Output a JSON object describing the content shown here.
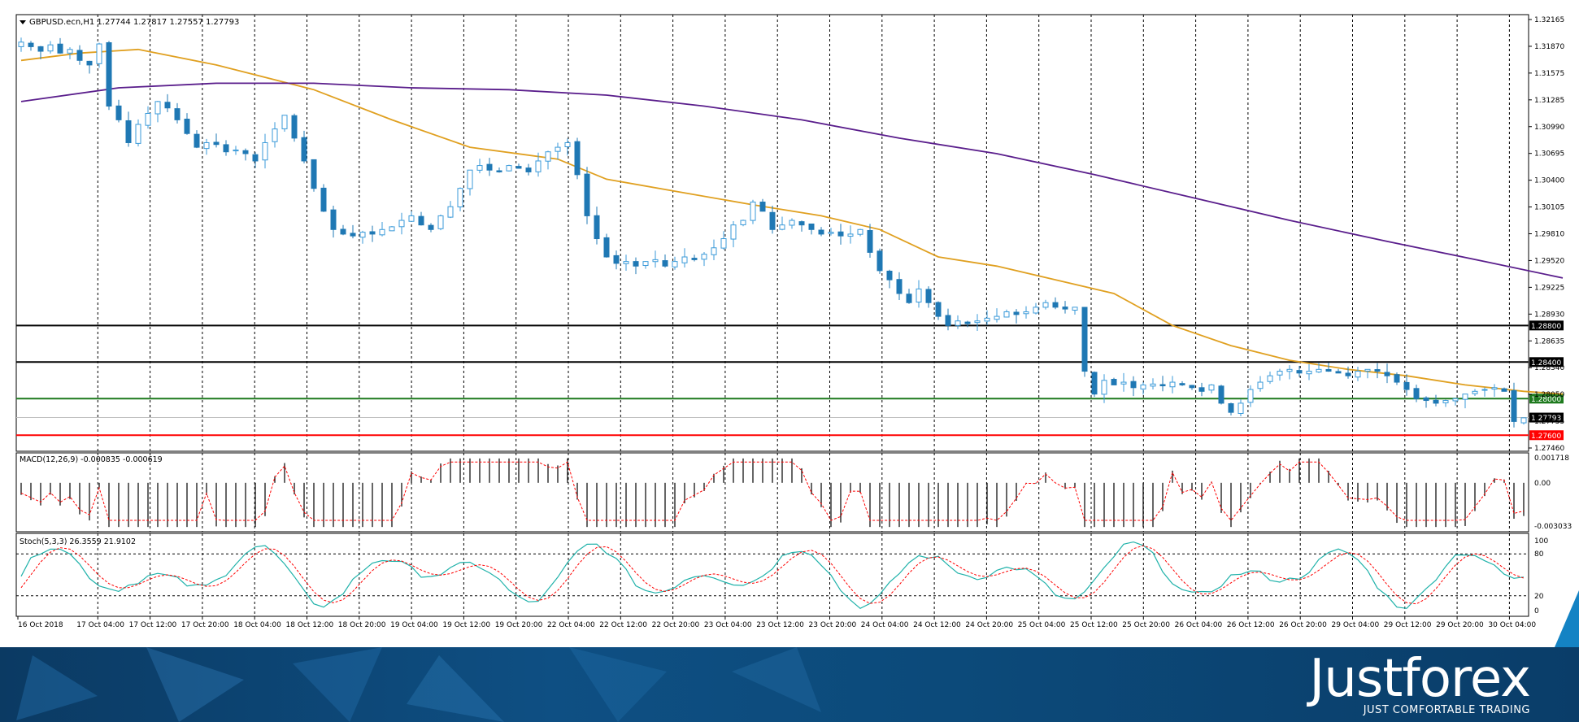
{
  "window": {
    "symbol_info": "GBPUSD.ecn,H1  1.27744 1.27817 1.27557 1.27793"
  },
  "price_scale": [
    "1.32165",
    "1.31870",
    "1.31575",
    "1.31285",
    "1.30990",
    "1.30695",
    "1.30400",
    "1.30105",
    "1.29810",
    "1.29520",
    "1.29225",
    "1.28930",
    "1.28635",
    "1.28340",
    "1.28050",
    "1.27755",
    "1.27460"
  ],
  "levels": [
    {
      "price": 1.288,
      "label": "1.28800",
      "color": "#000000"
    },
    {
      "price": 1.284,
      "label": "1.28400",
      "color": "#000000"
    },
    {
      "price": 1.28,
      "label": "1.28000",
      "color": "#1e7a1e"
    },
    {
      "price": 1.276,
      "label": "1.27600",
      "color": "#ff0000"
    }
  ],
  "current_price": {
    "price": 1.27793,
    "label": "1.27793"
  },
  "macd": {
    "label": "MACD(12,26,9) -0.000835 -0.000619",
    "scale": [
      "0.001718",
      "0.00",
      "-0.003033"
    ]
  },
  "stoch": {
    "label": "Stoch(5,3,3) 26.3559 21.9102",
    "scale": [
      "100",
      "80",
      "20",
      "0"
    ]
  },
  "time_axis": [
    "16 Oct 2018",
    "17 Oct 04:00",
    "17 Oct 12:00",
    "17 Oct 20:00",
    "18 Oct 04:00",
    "18 Oct 12:00",
    "18 Oct 20:00",
    "19 Oct 04:00",
    "19 Oct 12:00",
    "19 Oct 20:00",
    "22 Oct 04:00",
    "22 Oct 12:00",
    "22 Oct 20:00",
    "23 Oct 04:00",
    "23 Oct 12:00",
    "23 Oct 20:00",
    "24 Oct 04:00",
    "24 Oct 12:00",
    "24 Oct 20:00",
    "25 Oct 04:00",
    "25 Oct 12:00",
    "25 Oct 20:00",
    "26 Oct 04:00",
    "26 Oct 12:00",
    "26 Oct 20:00",
    "29 Oct 04:00",
    "29 Oct 12:00",
    "29 Oct 20:00",
    "30 Oct 04:00"
  ],
  "branding": {
    "logo": "Justforex",
    "tagline": "JUST COMFORTABLE TRADING"
  },
  "colors": {
    "bull": "#3a9ad9",
    "bear": "#1f78b4",
    "ma_fast": "#e0a020",
    "ma_slow": "#5a1e8c",
    "macd_hist": "#000000",
    "signal": "#ff0000",
    "stoch_main": "#20b2aa",
    "grid": "#000000",
    "banner": "#0e4f83"
  },
  "chart_data": {
    "type": "candlestick",
    "title": "GBPUSD.ecn,H1",
    "ylim": [
      1.2746,
      1.32165
    ],
    "close_path": [
      1.319,
      1.3185,
      1.318,
      1.3187,
      1.3178,
      1.3182,
      1.317,
      1.3165,
      1.3188,
      1.312,
      1.3105,
      1.308,
      1.31,
      1.3112,
      1.3125,
      1.3118,
      1.3105,
      1.309,
      1.3075,
      1.308,
      1.3078,
      1.307,
      1.3072,
      1.3068,
      1.306,
      1.308,
      1.3095,
      1.311,
      1.3085,
      1.306,
      1.303,
      1.3005,
      1.2985,
      1.298,
      1.2978,
      1.2982,
      1.298,
      1.2985,
      1.2988,
      1.2995,
      1.3,
      1.299,
      1.2985,
      1.3,
      1.301,
      1.303,
      1.305,
      1.3055,
      1.305,
      1.3048,
      1.3055,
      1.3052,
      1.3048,
      1.306,
      1.307,
      1.3075,
      1.308,
      1.3045,
      1.3,
      1.2975,
      1.2955,
      1.2948,
      1.295,
      1.2945,
      1.295,
      1.2952,
      1.2945,
      1.295,
      1.2955,
      1.2952,
      1.2958,
      1.2965,
      1.2975,
      1.299,
      1.2995,
      1.3015,
      1.3005,
      1.2985,
      1.299,
      1.2995,
      1.299,
      1.2985,
      1.298,
      1.2982,
      1.2978,
      1.298,
      1.2985,
      1.296,
      1.294,
      1.293,
      1.2915,
      1.2905,
      1.292,
      1.2905,
      1.289,
      1.288,
      1.2885,
      1.2882,
      1.2885,
      1.2888,
      1.289,
      1.2895,
      1.2892,
      1.2895,
      1.29,
      1.2905,
      1.29,
      1.2898,
      1.29,
      1.283,
      1.2805,
      1.282,
      1.2815,
      1.2818,
      1.2812,
      1.2815,
      1.2816,
      1.2814,
      1.2818,
      1.2815,
      1.2812,
      1.2808,
      1.2815,
      1.2795,
      1.2785,
      1.2795,
      1.281,
      1.2818,
      1.2825,
      1.283,
      1.2832,
      1.2828,
      1.283,
      1.2832,
      1.283,
      1.2828,
      1.2825,
      1.283,
      1.2832,
      1.283,
      1.2825,
      1.2818,
      1.281,
      1.28,
      1.2798,
      1.2795,
      1.2798,
      1.28,
      1.2805,
      1.2808,
      1.281,
      1.2812,
      1.2808,
      1.2775,
      1.2779
    ],
    "ma_fast": [
      [
        0,
        1.317
      ],
      [
        6,
        1.3178
      ],
      [
        12,
        1.3182
      ],
      [
        20,
        1.3165
      ],
      [
        30,
        1.3138
      ],
      [
        38,
        1.3105
      ],
      [
        46,
        1.3075
      ],
      [
        55,
        1.3062
      ],
      [
        60,
        1.304
      ],
      [
        68,
        1.3025
      ],
      [
        75,
        1.3012
      ],
      [
        82,
        1.3
      ],
      [
        88,
        1.2985
      ],
      [
        94,
        1.2955
      ],
      [
        100,
        1.2945
      ],
      [
        106,
        1.293
      ],
      [
        112,
        1.2915
      ],
      [
        118,
        1.288
      ],
      [
        124,
        1.2858
      ],
      [
        130,
        1.2842
      ],
      [
        136,
        1.2832
      ],
      [
        142,
        1.2825
      ],
      [
        148,
        1.2815
      ],
      [
        154,
        1.2808
      ],
      [
        158,
        1.2805
      ]
    ],
    "ma_slow": [
      [
        0,
        1.3125
      ],
      [
        10,
        1.314
      ],
      [
        20,
        1.3145
      ],
      [
        30,
        1.3145
      ],
      [
        40,
        1.314
      ],
      [
        50,
        1.3138
      ],
      [
        60,
        1.3132
      ],
      [
        70,
        1.312
      ],
      [
        80,
        1.3105
      ],
      [
        90,
        1.3085
      ],
      [
        100,
        1.3068
      ],
      [
        110,
        1.3045
      ],
      [
        120,
        1.302
      ],
      [
        130,
        1.2995
      ],
      [
        140,
        1.2972
      ],
      [
        150,
        1.295
      ],
      [
        158,
        1.2932
      ]
    ]
  }
}
